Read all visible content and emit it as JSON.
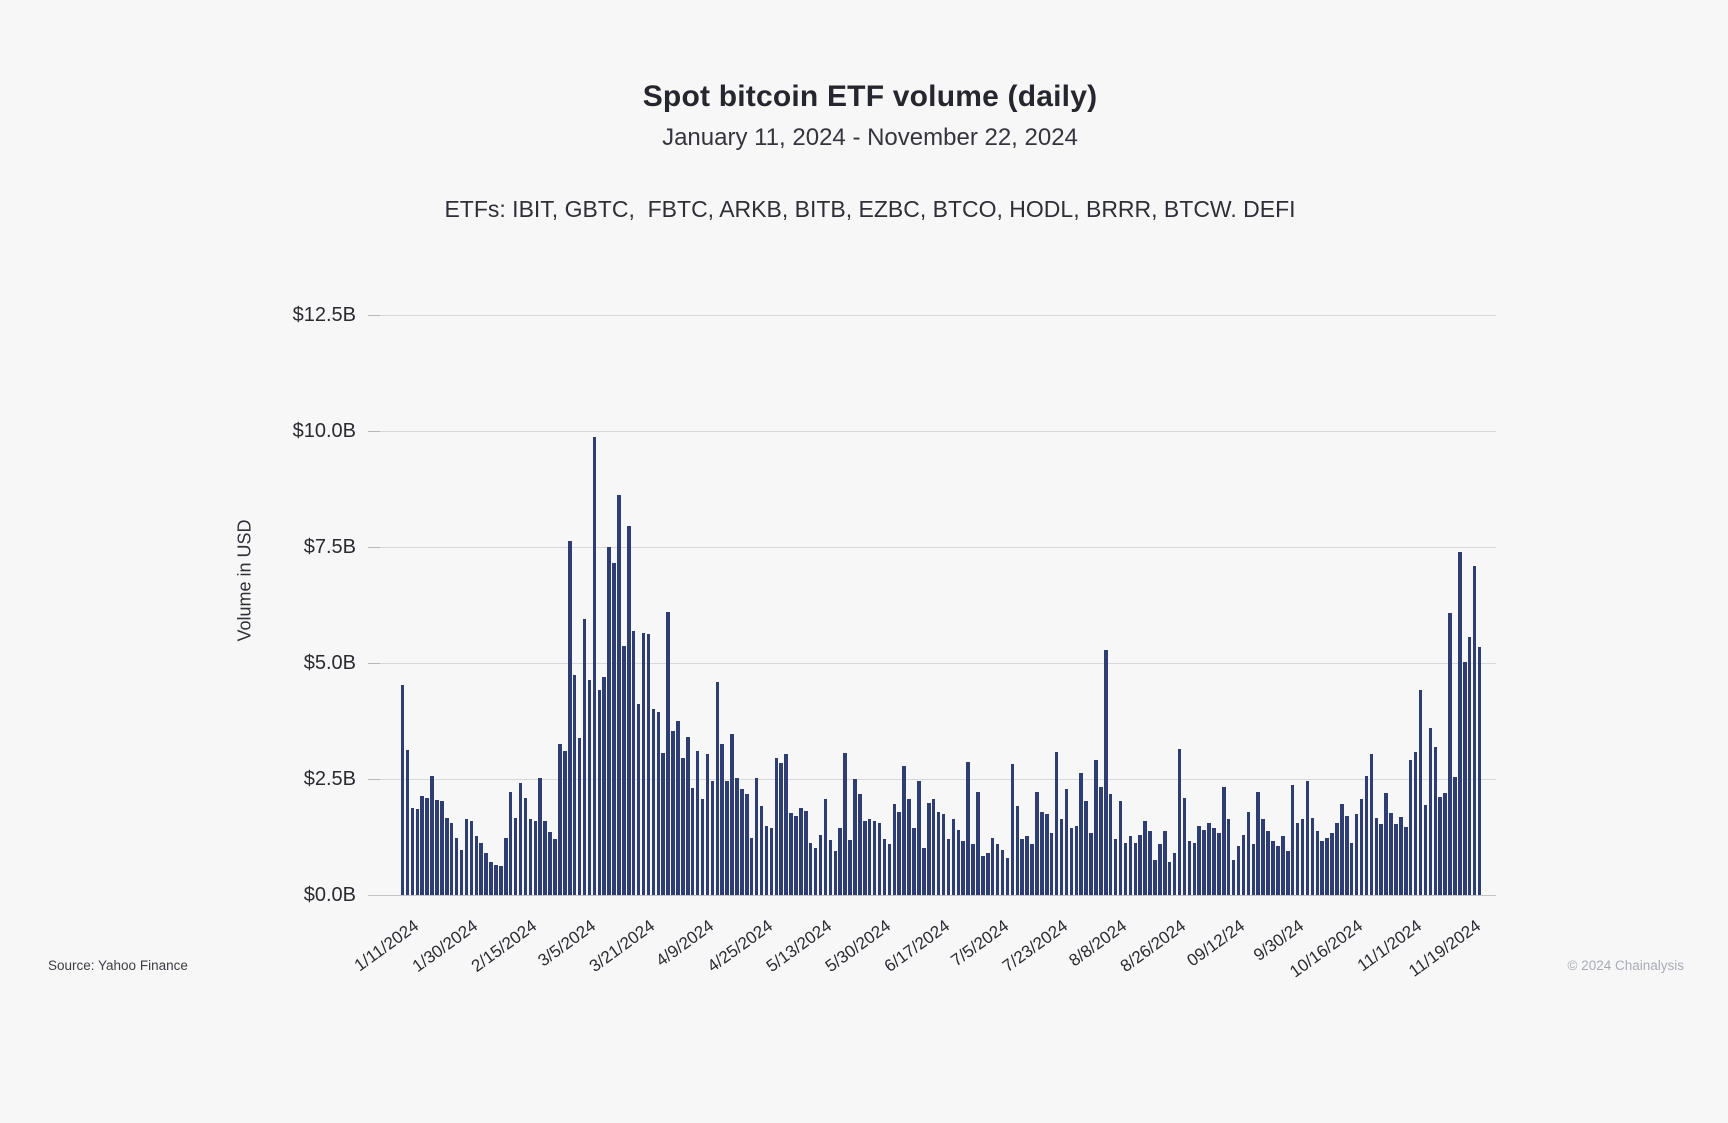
{
  "page": {
    "background": "#f7f7f8"
  },
  "header": {
    "title": "Spot bitcoin ETF volume (daily)",
    "subtitle": "January 11, 2024 - November 22, 2024",
    "etfs_line": "ETFs: IBIT, GBTC,  FBTC, ARKB, BITB, EZBC, BTCO, HODL, BRRR, BTCW. DEFI"
  },
  "footer": {
    "source": "Source: Yahoo Finance",
    "copyright": "© 2024 Chainalysis"
  },
  "chart_data": {
    "type": "bar",
    "title": "Spot bitcoin ETF volume (daily)",
    "xlabel": "",
    "ylabel": "Volume in USD",
    "ylim": [
      0,
      12.5
    ],
    "grid": true,
    "legend_position": "none",
    "bar_color": "#2e3d72",
    "grid_color": "#d8d8db",
    "ytick_labels": [
      "$12.5B",
      "$10.0B",
      "$7.5B",
      "$5.0B",
      "$2.5B",
      "$0.0B"
    ],
    "ytick_values": [
      12.5,
      10.0,
      7.5,
      5.0,
      2.5,
      0.0
    ],
    "xtick_labels": [
      "1/11/2024",
      "1/30/2024",
      "2/15/2024",
      "3/5/2024",
      "3/21/2024",
      "4/9/2024",
      "4/25/2024",
      "5/13/2024",
      "5/30/2024",
      "6/17/2024",
      "7/5/2024",
      "7/23/2024",
      "8/8/2024",
      "8/26/2024",
      "09/12/24",
      "9/30/24",
      "10/16/2024",
      "11/1/2024",
      "11/19/2024"
    ],
    "xtick_every": 12,
    "units": "billions USD",
    "categories": [
      "1/11/2024",
      "1/12/2024",
      "1/16/2024",
      "1/17/2024",
      "1/18/2024",
      "1/19/2024",
      "1/22/2024",
      "1/23/2024",
      "1/24/2024",
      "1/25/2024",
      "1/26/2024",
      "1/29/2024",
      "1/30/2024",
      "1/31/2024",
      "2/1/2024",
      "2/2/2024",
      "2/5/2024",
      "2/6/2024",
      "2/7/2024",
      "2/8/2024",
      "2/9/2024",
      "2/12/2024",
      "2/13/2024",
      "2/14/2024",
      "2/15/2024",
      "2/16/2024",
      "2/20/2024",
      "2/21/2024",
      "2/22/2024",
      "2/23/2024",
      "2/26/2024",
      "2/27/2024",
      "2/28/2024",
      "2/29/2024",
      "3/1/2024",
      "3/4/2024",
      "3/5/2024",
      "3/6/2024",
      "3/7/2024",
      "3/8/2024",
      "3/11/2024",
      "3/12/2024",
      "3/13/2024",
      "3/14/2024",
      "3/15/2024",
      "3/18/2024",
      "3/19/2024",
      "3/20/2024",
      "3/21/2024",
      "3/22/2024",
      "3/25/2024",
      "3/26/2024",
      "3/27/2024",
      "3/28/2024",
      "4/1/2024",
      "4/2/2024",
      "4/3/2024",
      "4/4/2024",
      "4/5/2024",
      "4/8/2024",
      "4/9/2024",
      "4/10/2024",
      "4/11/2024",
      "4/12/2024",
      "4/15/2024",
      "4/16/2024",
      "4/17/2024",
      "4/18/2024",
      "4/19/2024",
      "4/22/2024",
      "4/23/2024",
      "4/24/2024",
      "4/25/2024",
      "4/26/2024",
      "4/29/2024",
      "4/30/2024",
      "5/1/2024",
      "5/2/2024",
      "5/3/2024",
      "5/6/2024",
      "5/7/2024",
      "5/8/2024",
      "5/9/2024",
      "5/10/2024",
      "5/13/2024",
      "5/14/2024",
      "5/15/2024",
      "5/16/2024",
      "5/17/2024",
      "5/20/2024",
      "5/21/2024",
      "5/22/2024",
      "5/23/2024",
      "5/24/2024",
      "5/28/2024",
      "5/29/2024",
      "5/30/2024",
      "5/31/2024",
      "6/3/2024",
      "6/4/2024",
      "6/5/2024",
      "6/6/2024",
      "6/7/2024",
      "6/10/2024",
      "6/11/2024",
      "6/12/2024",
      "6/13/2024",
      "6/14/2024",
      "6/17/2024",
      "6/18/2024",
      "6/20/2024",
      "6/21/2024",
      "6/24/2024",
      "6/25/2024",
      "6/26/2024",
      "6/27/2024",
      "6/28/2024",
      "7/1/2024",
      "7/2/2024",
      "7/3/2024",
      "7/5/2024",
      "7/8/2024",
      "7/9/2024",
      "7/10/2024",
      "7/11/2024",
      "7/12/2024",
      "7/15/2024",
      "7/16/2024",
      "7/17/2024",
      "7/18/2024",
      "7/19/2024",
      "7/22/2024",
      "7/23/2024",
      "7/24/2024",
      "7/25/2024",
      "7/26/2024",
      "7/29/2024",
      "7/30/2024",
      "7/31/2024",
      "8/1/2024",
      "8/2/2024",
      "8/5/2024",
      "8/6/2024",
      "8/7/2024",
      "8/8/2024",
      "8/9/2024",
      "8/12/2024",
      "8/13/2024",
      "8/14/2024",
      "8/15/2024",
      "8/16/2024",
      "8/19/2024",
      "8/20/2024",
      "8/21/2024",
      "8/22/2024",
      "8/23/2024",
      "8/26/2024",
      "8/27/2024",
      "8/28/2024",
      "8/29/2024",
      "8/30/2024",
      "9/3/2024",
      "9/4/2024",
      "9/5/2024",
      "9/6/2024",
      "9/9/2024",
      "9/10/2024",
      "9/11/2024",
      "9/12/2024",
      "9/13/2024",
      "9/16/2024",
      "9/17/2024",
      "9/18/2024",
      "9/19/2024",
      "9/20/2024",
      "9/23/2024",
      "9/24/2024",
      "9/25/2024",
      "9/26/2024",
      "9/27/2024",
      "9/30/2024",
      "10/1/2024",
      "10/2/2024",
      "10/3/2024",
      "10/4/2024",
      "10/7/2024",
      "10/8/2024",
      "10/9/2024",
      "10/10/2024",
      "10/11/2024",
      "10/14/2024",
      "10/15/2024",
      "10/16/2024",
      "10/17/2024",
      "10/18/2024",
      "10/21/2024",
      "10/22/2024",
      "10/23/2024",
      "10/24/2024",
      "10/25/2024",
      "10/28/2024",
      "10/29/2024",
      "10/30/2024",
      "10/31/2024",
      "11/1/2024",
      "11/4/2024",
      "11/5/2024",
      "11/6/2024",
      "11/7/2024",
      "11/8/2024",
      "11/11/2024",
      "11/12/2024",
      "11/13/2024",
      "11/14/2024",
      "11/15/2024",
      "11/18/2024",
      "11/19/2024",
      "11/20/2024",
      "11/21/2024",
      "11/22/2024"
    ],
    "values": [
      4.53,
      3.12,
      1.88,
      1.86,
      2.14,
      2.08,
      2.57,
      2.05,
      2.03,
      1.67,
      1.56,
      1.23,
      0.98,
      1.63,
      1.59,
      1.27,
      1.12,
      0.91,
      0.72,
      0.65,
      0.62,
      1.23,
      2.21,
      1.67,
      2.41,
      2.08,
      1.64,
      1.6,
      2.52,
      1.6,
      1.35,
      1.2,
      3.25,
      3.1,
      7.62,
      4.74,
      3.39,
      5.94,
      4.63,
      9.88,
      4.41,
      4.7,
      7.51,
      7.15,
      8.61,
      5.36,
      7.95,
      5.69,
      4.12,
      5.65,
      5.62,
      4.01,
      3.94,
      3.06,
      6.09,
      3.54,
      3.76,
      2.95,
      3.4,
      2.31,
      3.11,
      2.06,
      3.04,
      2.46,
      4.59,
      3.25,
      2.46,
      3.47,
      2.53,
      2.28,
      2.17,
      1.23,
      2.53,
      1.91,
      1.48,
      1.45,
      2.96,
      2.85,
      3.04,
      1.77,
      1.7,
      1.88,
      1.81,
      1.12,
      1.01,
      1.3,
      2.06,
      1.19,
      0.94,
      1.45,
      3.07,
      1.19,
      2.49,
      2.17,
      1.59,
      1.63,
      1.59,
      1.56,
      1.2,
      1.09,
      1.96,
      1.78,
      2.79,
      2.07,
      1.45,
      2.46,
      1.01,
      1.99,
      2.07,
      1.78,
      1.74,
      1.2,
      1.63,
      1.41,
      1.16,
      2.86,
      1.09,
      2.21,
      0.83,
      0.91,
      1.23,
      1.09,
      0.98,
      0.8,
      2.83,
      1.92,
      1.2,
      1.27,
      1.09,
      2.21,
      1.78,
      1.74,
      1.34,
      3.08,
      1.63,
      2.28,
      1.45,
      1.49,
      2.64,
      2.03,
      1.34,
      2.9,
      2.32,
      5.29,
      2.17,
      1.2,
      2.03,
      1.12,
      1.27,
      1.12,
      1.3,
      1.59,
      1.38,
      0.76,
      1.09,
      1.38,
      0.72,
      0.91,
      3.15,
      2.1,
      1.16,
      1.12,
      1.49,
      1.41,
      1.56,
      1.45,
      1.34,
      2.32,
      1.63,
      0.76,
      1.05,
      1.3,
      1.78,
      1.09,
      2.21,
      1.63,
      1.38,
      1.16,
      1.05,
      1.27,
      0.94,
      2.36,
      1.56,
      1.63,
      2.46,
      1.67,
      1.38,
      1.16,
      1.23,
      1.34,
      1.56,
      1.96,
      1.7,
      1.12,
      1.74,
      2.07,
      2.57,
      3.04,
      1.67,
      1.52,
      2.19,
      1.76,
      1.54,
      1.69,
      1.47,
      2.91,
      3.09,
      4.42,
      1.94,
      3.59,
      3.2,
      2.12,
      2.19,
      6.07,
      2.55,
      7.39,
      5.02,
      5.57,
      7.1,
      5.35
    ]
  }
}
